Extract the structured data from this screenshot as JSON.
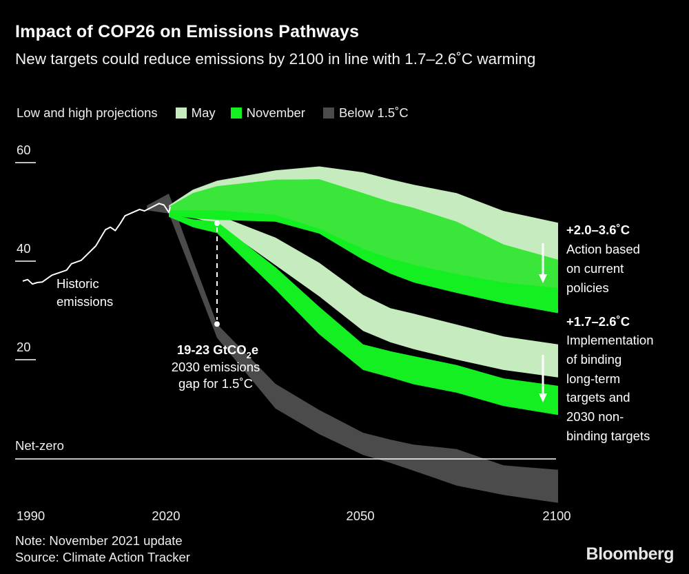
{
  "title": "Impact of COP26 on Emissions Pathways",
  "subtitle": "New targets could reduce emissions by 2100 in line with 1.7–2.6˚C warming",
  "legend": {
    "label": "Low and high projections",
    "items": [
      {
        "name": "May",
        "color": "#c5ebbf"
      },
      {
        "name": "November",
        "color": "#14ef22"
      },
      {
        "name": "Below 1.5˚C",
        "color": "#4b4b4b"
      }
    ]
  },
  "colors": {
    "overlap": "#3be63b",
    "historic": "#ffffff",
    "background": "#000000"
  },
  "chart_data": {
    "type": "area",
    "ylim": [
      -10,
      60
    ],
    "yticks": [
      "60",
      "40",
      "20"
    ],
    "xticks": [
      "1990",
      "2020",
      "2050",
      "2100"
    ],
    "zero_line_label": "Net-zero",
    "historic": {
      "label_line1": "Historic",
      "label_line2": "emissions",
      "x": [
        1990,
        1991,
        1992,
        1993,
        1994,
        1996,
        1999,
        2000,
        2002,
        2005,
        2007,
        2008,
        2009,
        2010,
        2011,
        2014,
        2015,
        2018,
        2019,
        2020,
        2020.3
      ],
      "y": [
        36.0,
        36.3,
        35.4,
        35.7,
        35.8,
        37.2,
        38.2,
        39.5,
        40.2,
        43.1,
        46.4,
        46.9,
        46.2,
        47.6,
        49.2,
        50.5,
        50.2,
        51.7,
        51.4,
        49.9,
        51.0
      ]
    },
    "x": [
      2020,
      2025,
      2030,
      2038,
      2044,
      2050,
      2057,
      2063,
      2074,
      2086,
      2100
    ],
    "bands": [
      {
        "id": "below-1-5",
        "series": "Below 1.5˚C",
        "x": [
          2015.5,
          2020,
          2025,
          2030,
          2038,
          2044,
          2050,
          2057,
          2063,
          2074,
          2086,
          2100
        ],
        "high": [
          51.3,
          53.7,
          40.3,
          27.3,
          15.2,
          9.9,
          5.3,
          3.9,
          2.9,
          2.0,
          -1.3,
          -2.2
        ],
        "low": [
          50.3,
          49.7,
          37.1,
          24.5,
          10.2,
          5.0,
          0.8,
          -0.8,
          -2.4,
          -5.4,
          -7.3,
          -8.9
        ]
      },
      {
        "id": "may-targets",
        "series": "May",
        "scenario": "targets",
        "high": [
          50.3,
          49.9,
          49.4,
          44.8,
          39.7,
          33.2,
          30.5,
          29.4,
          27.2,
          24.8,
          23.2
        ],
        "low": [
          49.7,
          48.8,
          47.6,
          39.2,
          32.9,
          25.9,
          23.6,
          22.2,
          20.1,
          18.0,
          16.5
        ]
      },
      {
        "id": "november-targets",
        "series": "November",
        "scenario": "targets",
        "high": [
          49.7,
          48.5,
          48.0,
          38.8,
          30.8,
          23.2,
          21.8,
          20.8,
          19.0,
          16.3,
          14.8
        ],
        "low": [
          49.0,
          46.9,
          45.7,
          34.3,
          25.2,
          18.0,
          16.5,
          15.1,
          13.4,
          10.7,
          8.9
        ]
      },
      {
        "id": "may-current-policies",
        "series": "May",
        "scenario": "current",
        "high": [
          51.3,
          54.5,
          56.3,
          58.4,
          59.2,
          58.0,
          56.6,
          55.5,
          53.8,
          50.2,
          47.8
        ],
        "low": [
          50.3,
          50.3,
          50.3,
          49.4,
          46.6,
          42.5,
          40.6,
          39.3,
          37.4,
          35.7,
          34.6
        ]
      },
      {
        "id": "november-current-policies",
        "series": "November",
        "scenario": "current",
        "high": [
          51.0,
          53.8,
          55.2,
          56.5,
          56.6,
          53.8,
          52.0,
          50.8,
          48.0,
          43.4,
          40.3
        ],
        "low": [
          49.4,
          48.7,
          48.4,
          48.0,
          45.6,
          40.3,
          37.5,
          35.7,
          33.6,
          31.5,
          29.5
        ]
      }
    ],
    "gap_annotation": {
      "year": 2030,
      "from": 47.7,
      "to": 27.3,
      "headline": "19-23 GtCO",
      "headline_sub": "2",
      "headline_end": "e",
      "line2": "2030 emissions",
      "line3": "gap for 1.5˚C"
    },
    "right_labels": [
      {
        "headline": "+2.0–3.6˚C",
        "lines": [
          "Action based",
          "on current",
          "policies"
        ]
      },
      {
        "headline": "+1.7–2.6˚C",
        "lines": [
          "Implementation",
          "of binding",
          "long-term",
          "targets and",
          "2030 non-",
          "binding targets"
        ]
      }
    ]
  },
  "footer": {
    "note": "Note: November 2021 update",
    "source": "Source: Climate Action Tracker",
    "logo": "Bloomberg"
  }
}
